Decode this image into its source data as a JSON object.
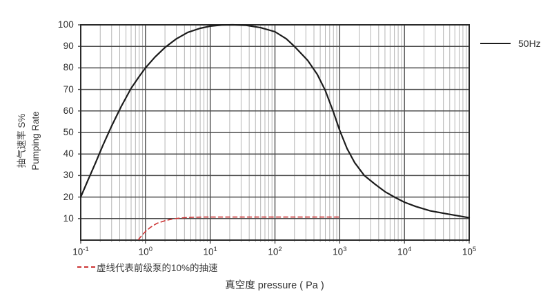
{
  "chart_data": {
    "type": "line",
    "title": "",
    "xlabel": "真空度 pressure ( Pa )",
    "ylabel": "抽气速率 S%",
    "ylabel_en": "Pumping Rate",
    "x_scale": "log",
    "x_unit": "Pa",
    "x_tick_base": 10,
    "x_tick_exponents": [
      -1,
      0,
      1,
      2,
      3,
      4,
      5
    ],
    "xlim_exponents": [
      -1,
      5
    ],
    "y_ticks": [
      10,
      20,
      30,
      40,
      50,
      60,
      70,
      80,
      90,
      100
    ],
    "ylim": [
      0,
      100
    ],
    "grid": true,
    "legend_position": "top-right-outside",
    "legend": "50Hz",
    "footnote": "虚线代表前级泵的10%的抽速",
    "colors": {
      "curve": "#1c1c1c",
      "dashed_curve": "#cc3333",
      "major_grid": "#4a4a4a",
      "minor_grid": "#b5b5b5",
      "border": "#2a2a2a",
      "text": "#2b2b2b"
    },
    "series": [
      {
        "name": "50Hz",
        "style": "solid",
        "color": "#1c1c1c",
        "points": [
          [
            0.1,
            20
          ],
          [
            0.13,
            28
          ],
          [
            0.17,
            36
          ],
          [
            0.22,
            44
          ],
          [
            0.3,
            53
          ],
          [
            0.42,
            62
          ],
          [
            0.6,
            70.5
          ],
          [
            0.8,
            76
          ],
          [
            1,
            80
          ],
          [
            1.4,
            85
          ],
          [
            2,
            89.5
          ],
          [
            3,
            93.5
          ],
          [
            4.5,
            96.5
          ],
          [
            7,
            98.4
          ],
          [
            10,
            99.4
          ],
          [
            15,
            99.9
          ],
          [
            22,
            100
          ],
          [
            35,
            99.8
          ],
          [
            60,
            98.7
          ],
          [
            100,
            96.8
          ],
          [
            150,
            93.5
          ],
          [
            200,
            90
          ],
          [
            320,
            83.5
          ],
          [
            450,
            77
          ],
          [
            600,
            69.5
          ],
          [
            800,
            59.5
          ],
          [
            1000,
            51
          ],
          [
            1300,
            42.5
          ],
          [
            1700,
            36
          ],
          [
            2400,
            30
          ],
          [
            3500,
            26
          ],
          [
            5000,
            22.5
          ],
          [
            7000,
            20
          ],
          [
            10000,
            17.6
          ],
          [
            15000,
            15.6
          ],
          [
            25000,
            13.6
          ],
          [
            45000,
            12.2
          ],
          [
            70000,
            11.2
          ],
          [
            100000,
            10.4
          ]
        ]
      },
      {
        "name": "虚线代表前级泵的10%的抽速",
        "style": "dashed",
        "color": "#cc3333",
        "points": [
          [
            0.78,
            0.3
          ],
          [
            0.9,
            2.5
          ],
          [
            1,
            4
          ],
          [
            1.2,
            6
          ],
          [
            1.5,
            7.8
          ],
          [
            2,
            9
          ],
          [
            2.6,
            9.8
          ],
          [
            3.5,
            10.3
          ],
          [
            5,
            10.6
          ],
          [
            8,
            10.7
          ],
          [
            15,
            10.7
          ],
          [
            40,
            10.7
          ],
          [
            100,
            10.7
          ],
          [
            300,
            10.7
          ],
          [
            1000,
            10.7
          ]
        ]
      }
    ]
  }
}
